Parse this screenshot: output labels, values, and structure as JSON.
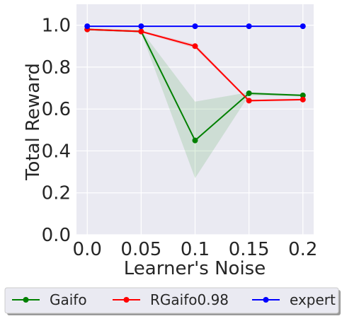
{
  "chart_data": {
    "type": "line",
    "title": "",
    "xlabel": "Learner's Noise",
    "ylabel": "Total Reward",
    "x": [
      0.0,
      0.05,
      0.1,
      0.15,
      0.2
    ],
    "x_tick_labels": [
      "0.0",
      "0.05",
      "0.1",
      "0.15",
      "0.2"
    ],
    "y_ticks": [
      0.0,
      0.2,
      0.4,
      0.6,
      0.8,
      1.0
    ],
    "y_tick_labels": [
      "0.0",
      "0.2",
      "0.4",
      "0.6",
      "0.8",
      "1.0"
    ],
    "xlim": [
      -0.01,
      0.21
    ],
    "ylim": [
      0.0,
      1.1
    ],
    "grid": true,
    "legend_placement": "bottom-center",
    "series": [
      {
        "name": "Gaifo",
        "color": "#008000",
        "values": [
          0.98,
          0.97,
          0.45,
          0.675,
          0.665
        ],
        "band_lower": [
          0.975,
          0.965,
          0.27,
          0.665,
          0.66
        ],
        "band_upper": [
          0.985,
          0.975,
          0.635,
          0.68,
          0.67
        ]
      },
      {
        "name": "RGaifo0.98",
        "color": "#ff0000",
        "values": [
          0.98,
          0.97,
          0.9,
          0.64,
          0.645
        ],
        "band_lower": [
          0.975,
          0.965,
          0.89,
          0.635,
          0.64
        ],
        "band_upper": [
          0.985,
          0.975,
          0.91,
          0.645,
          0.65
        ]
      },
      {
        "name": "expert",
        "color": "#0000ff",
        "values": [
          0.995,
          0.995,
          0.995,
          0.995,
          0.995
        ]
      }
    ]
  }
}
